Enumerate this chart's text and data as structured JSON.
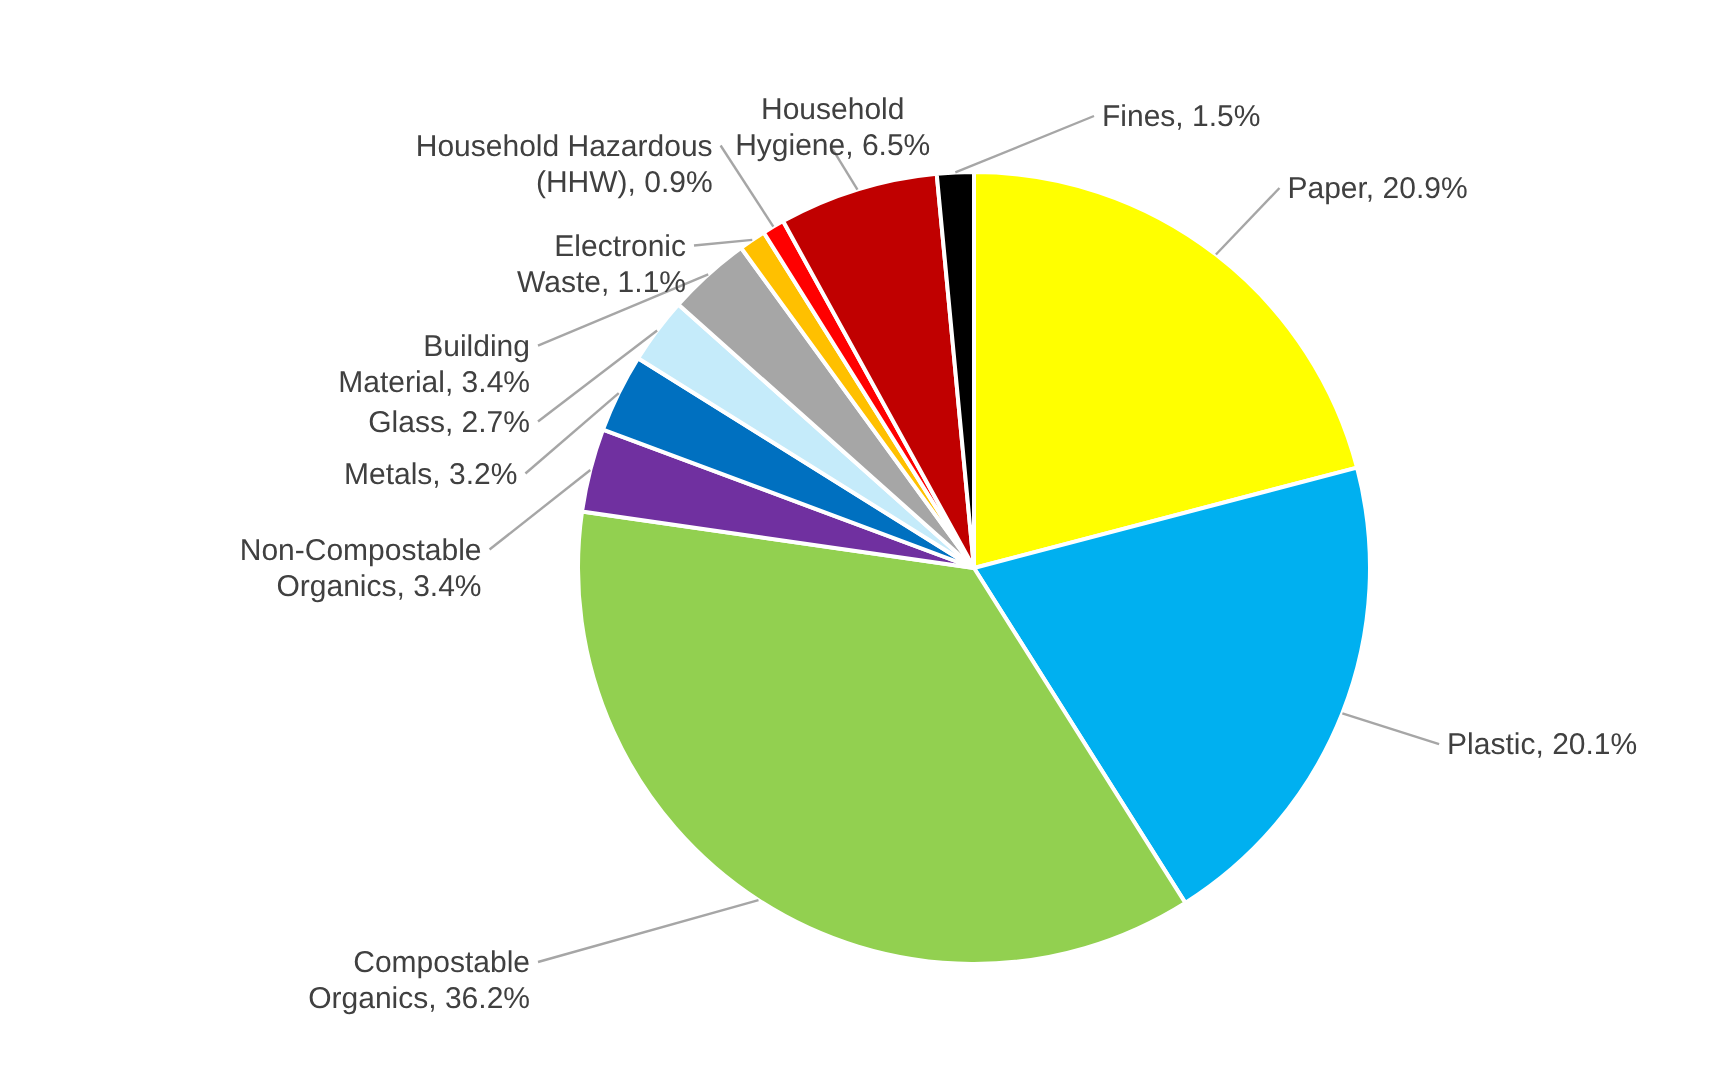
{
  "chart_data": {
    "type": "pie",
    "categories": [
      "Paper",
      "Plastic",
      "Compostable Organics",
      "Non-Compostable Organics",
      "Metals",
      "Glass",
      "Building Material",
      "Electronic Waste",
      "Household Hazardous (HHW)",
      "Household Hygiene",
      "Fines"
    ],
    "values": [
      20.9,
      20.1,
      36.2,
      3.4,
      3.2,
      2.7,
      3.4,
      1.1,
      0.9,
      6.5,
      1.5
    ],
    "value_labels": [
      "20.9%",
      "20.1%",
      "36.2%",
      "3.4%",
      "3.2%",
      "2.7%",
      "3.4%",
      "1.1%",
      "0.9%",
      "6.5%",
      "1.5%"
    ],
    "colors": [
      "#ffff00",
      "#00b0f0",
      "#92d050",
      "#7030a0",
      "#0070c0",
      "#c5ebfa",
      "#a6a6a6",
      "#ffc000",
      "#ff0000",
      "#c00000",
      "#000000"
    ]
  }
}
